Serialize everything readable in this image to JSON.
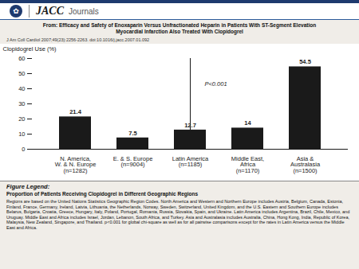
{
  "chart_data": {
    "type": "bar",
    "header": [
      "✿",
      "JACC",
      "Journals"
    ],
    "title": [
      "From: Efficacy and Safety of Enoxaparin Versus Unfractionated Heparin in Patients With ST-Segment Elevation",
      "Myocardial Infarction Also Treated With Clopidogrel"
    ],
    "subtitle": "J Am Coll Cardiol 2007;49(23):2256-2263. doi:10.1016/j.jacc.2007.01.092",
    "categories": [
      "N. America,\nW. & N. Europe\n(n=1282)",
      "E. & S. Europe\n(n=9004)",
      "Latin America\n(n=1185)",
      "Middle East,\nAfrica\n(n=1170)",
      "Asia &\nAustralasia\n(n=1500)"
    ],
    "values": [
      21.4,
      7.5,
      12.7,
      14.0,
      54.5
    ],
    "color": "#1a1a1a",
    "data_labels": true,
    "ylabel": "Clopidogrel Use (%)",
    "ylim": [
      0,
      60
    ],
    "yticks": [
      0,
      10,
      20,
      30,
      40,
      50,
      60
    ],
    "grid": false,
    "annotations": [
      {
        "text": "P<0.001",
        "y": 43
      }
    ],
    "caption": [
      "Figure Legend:",
      "Proportion of Patients Receiving Clopidogrel in Different Geographic Regions",
      "Regions are based on the United Nations Statistics Geographic Region Codes. North America and Western and Northern Europe includes Austria, Belgium, Canada, Estonia, Finland, France, Germany, Ireland, Latvia, Lithuania, the Netherlands, Norway, Sweden, Switzerland, United Kingdom, and the U.S. Eastern and Southern Europe includes Belarus, Bulgaria, Croatia, Greece, Hungary, Italy, Poland, Portugal, Romania, Russia, Slovakia, Spain, and Ukraine. Latin America includes Argentina, Brazil, Chile, Mexico, and Uruguay. Middle East and Africa includes Israel, Jordan, Lebanon, South Africa, and Turkey. Asia and Australasia includes Australia, China, Hong Kong, India, Republic of Korea, Malaysia, New Zealand, Singapore, and Thailand. p<0.001 for global chi-square as well as for all pairwise comparisons except for the rates in Latin America versus the Middle East and Africa."
    ]
  }
}
